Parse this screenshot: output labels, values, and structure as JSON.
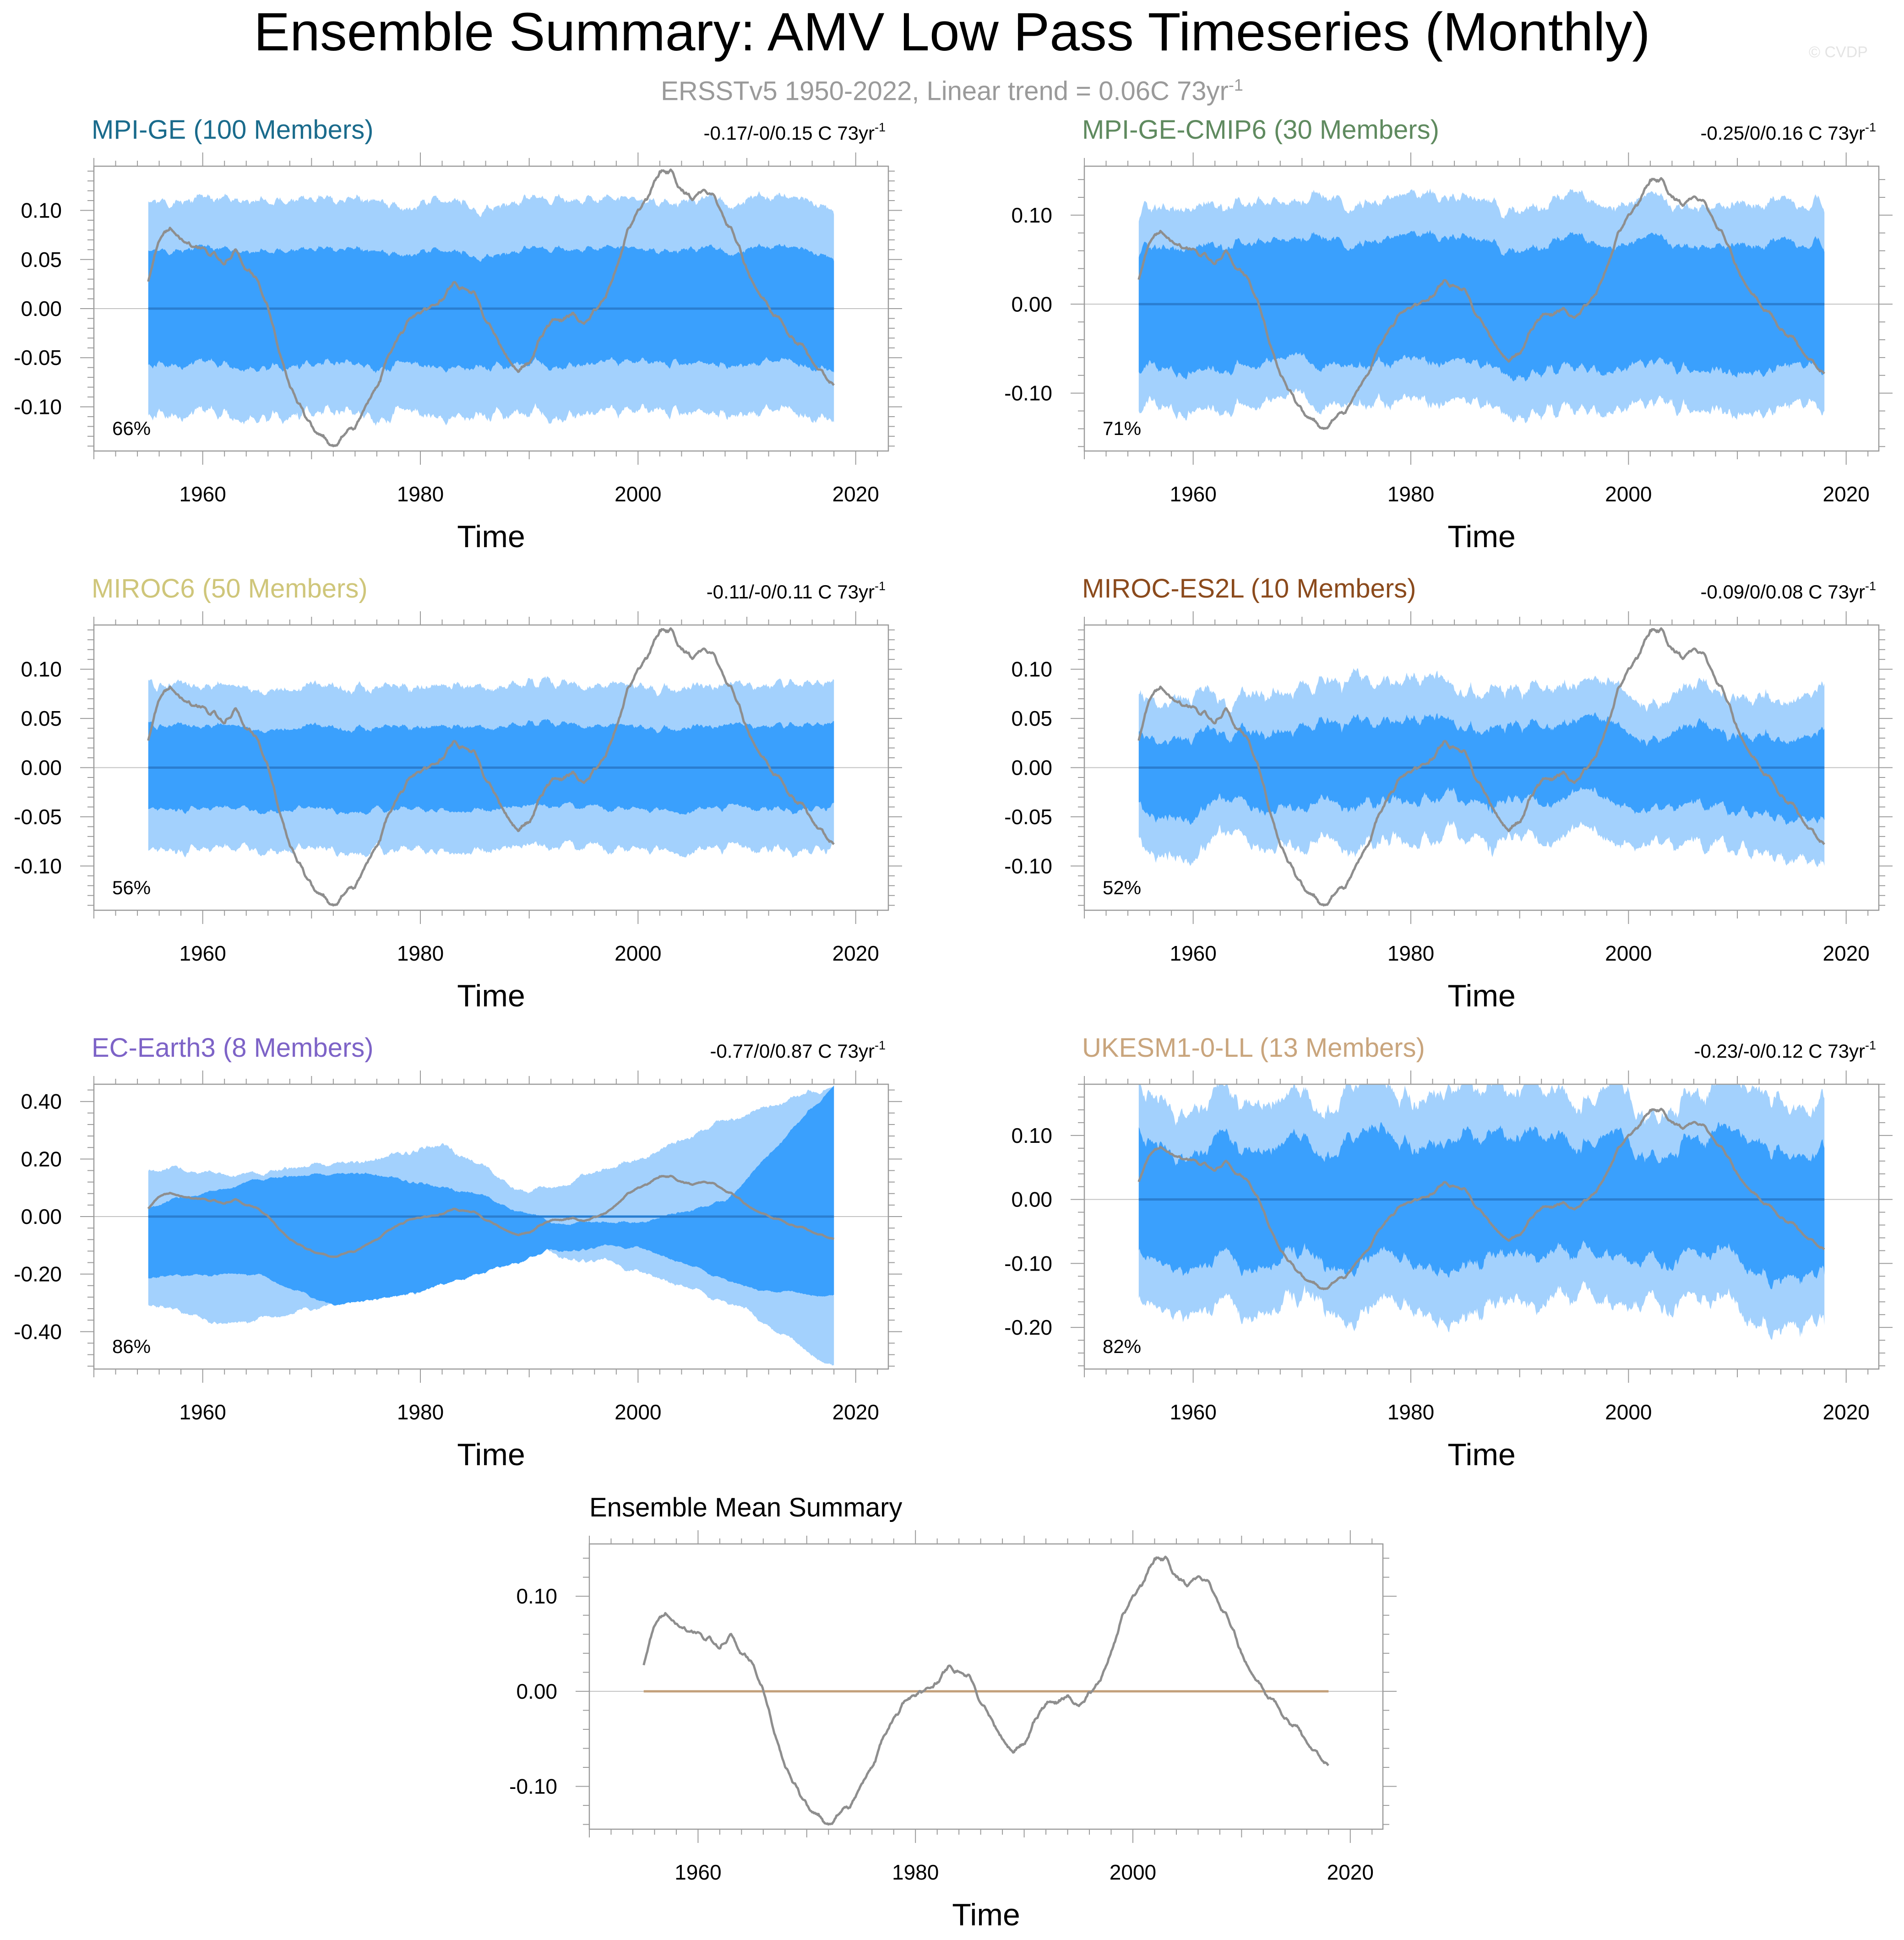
{
  "title": "Ensemble Summary: AMV Low Pass Timeseries (Monthly)",
  "subtitle_main": "ERSSTv5 1950-2022, Linear trend = 0.06C 73yr",
  "subtitle_exp": "-1",
  "copyright": "© CVDP",
  "colors": {
    "spread_outer": "#a3d1fd",
    "spread_inner": "#3aa0fd",
    "ensemble_line": "#2a7ed1",
    "obs_line": "#8e8e8e",
    "zero_line": "#c2c2c2",
    "mean_line": "#c3a07b",
    "axis": "#9b9b9b"
  },
  "chart_data": [
    {
      "type": "area",
      "name": "MPI-GE",
      "title": "MPI-GE (100 Members)",
      "title_color": "#1a6b8c",
      "range_label": "-0.17/-0/0.15 C 73yr",
      "range_exp": "-1",
      "percent": "66%",
      "xlabel": "Time",
      "xlim": [
        1950,
        2023
      ],
      "ylim": [
        -0.145,
        0.145
      ],
      "xticks": [
        "1960",
        "1980",
        "2000",
        "2020"
      ],
      "yticks": [
        "0.10",
        "0.05",
        "0.00",
        "-0.05",
        "-0.10"
      ],
      "ytick_values": [
        0.1,
        0.05,
        0.0,
        -0.05,
        -0.1
      ],
      "inner_amp": 0.058,
      "outer_amp": 0.108,
      "amp_var": 0.12,
      "seed": 1
    },
    {
      "type": "area",
      "name": "MPI-GE-CMIP6",
      "title": "MPI-GE-CMIP6 (30 Members)",
      "title_color": "#5f8a5f",
      "range_label": "-0.25/0/0.16 C 73yr",
      "range_exp": "-1",
      "percent": "71%",
      "xlabel": "Time",
      "xlim": [
        1950,
        2023
      ],
      "ylim": [
        -0.165,
        0.155
      ],
      "xticks": [
        "1960",
        "1980",
        "2000",
        "2020"
      ],
      "yticks": [
        "0.10",
        "0.00",
        "-0.10"
      ],
      "ytick_values": [
        0.1,
        0.0,
        -0.1
      ],
      "inner_amp": 0.07,
      "outer_amp": 0.115,
      "amp_var": 0.22,
      "seed": 2
    },
    {
      "type": "area",
      "name": "MIROC6",
      "title": "MIROC6 (50 Members)",
      "title_color": "#cfc67a",
      "range_label": "-0.11/-0/0.11 C 73yr",
      "range_exp": "-1",
      "percent": "56%",
      "xlabel": "Time",
      "xlim": [
        1950,
        2023
      ],
      "ylim": [
        -0.145,
        0.145
      ],
      "xticks": [
        "1960",
        "1980",
        "2000",
        "2020"
      ],
      "yticks": [
        "0.10",
        "0.05",
        "0.00",
        "-0.05",
        "-0.10"
      ],
      "ytick_values": [
        0.1,
        0.05,
        0.0,
        -0.05,
        -0.1
      ],
      "inner_amp": 0.042,
      "outer_amp": 0.083,
      "amp_var": 0.12,
      "seed": 3
    },
    {
      "type": "area",
      "name": "MIROC-ES2L",
      "title": "MIROC-ES2L (10 Members)",
      "title_color": "#8b4a1c",
      "range_label": "-0.09/0/0.08 C 73yr",
      "range_exp": "-1",
      "percent": "52%",
      "xlabel": "Time",
      "xlim": [
        1950,
        2023
      ],
      "ylim": [
        -0.145,
        0.145
      ],
      "xticks": [
        "1960",
        "1980",
        "2000",
        "2020"
      ],
      "yticks": [
        "0.10",
        "0.05",
        "0.00",
        "-0.05",
        "-0.10"
      ],
      "ytick_values": [
        0.1,
        0.05,
        0.0,
        -0.05,
        -0.1
      ],
      "inner_amp": 0.04,
      "outer_amp": 0.08,
      "amp_var": 0.55,
      "seed": 4
    },
    {
      "type": "area",
      "name": "EC-Earth3",
      "title": "EC-Earth3 (8 Members)",
      "title_color": "#7d63c7",
      "range_label": "-0.77/0/0.87 C 73yr",
      "range_exp": "-1",
      "percent": "86%",
      "xlabel": "Time",
      "xlim": [
        1950,
        2023
      ],
      "ylim": [
        -0.53,
        0.46
      ],
      "xticks": [
        "1960",
        "1980",
        "2000",
        "2020"
      ],
      "yticks": [
        "0.40",
        "0.20",
        "0.00",
        "-0.20",
        "-0.40"
      ],
      "ytick_values": [
        0.4,
        0.2,
        0.0,
        -0.2,
        -0.4
      ],
      "mode": "trend",
      "inner_upper": [
        [
          1955,
          0.03
        ],
        [
          1965,
          0.13
        ],
        [
          1975,
          0.15
        ],
        [
          1985,
          0.08
        ],
        [
          1992,
          -0.02
        ],
        [
          2000,
          -0.02
        ],
        [
          2008,
          0.05
        ],
        [
          2018,
          0.46
        ]
      ],
      "inner_lower": [
        [
          1955,
          -0.21
        ],
        [
          1965,
          -0.2
        ],
        [
          1972,
          -0.31
        ],
        [
          1980,
          -0.26
        ],
        [
          1992,
          -0.12
        ],
        [
          2000,
          -0.1
        ],
        [
          2010,
          -0.25
        ],
        [
          2018,
          -0.28
        ]
      ],
      "outer_upper": [
        [
          1955,
          0.16
        ],
        [
          1965,
          0.15
        ],
        [
          1975,
          0.19
        ],
        [
          1982,
          0.25
        ],
        [
          1990,
          0.08
        ],
        [
          2000,
          0.2
        ],
        [
          2008,
          0.33
        ],
        [
          2018,
          0.46
        ]
      ],
      "outer_lower": [
        [
          1955,
          -0.3
        ],
        [
          1962,
          -0.38
        ],
        [
          1970,
          -0.32
        ],
        [
          1980,
          -0.26
        ],
        [
          1990,
          -0.12
        ],
        [
          2000,
          -0.18
        ],
        [
          2010,
          -0.33
        ],
        [
          2018,
          -0.53
        ]
      ],
      "seed": 5
    },
    {
      "type": "area",
      "name": "UKESM1-0-LL",
      "title": "UKESM1-0-LL (13 Members)",
      "title_color": "#c9a57d",
      "range_label": "-0.23/-0/0.12 C 73yr",
      "range_exp": "-1",
      "percent": "82%",
      "xlabel": "Time",
      "xlim": [
        1950,
        2023
      ],
      "ylim": [
        -0.265,
        0.18
      ],
      "xticks": [
        "1960",
        "1980",
        "2000",
        "2020"
      ],
      "yticks": [
        "0.10",
        "0.00",
        "-0.10",
        "-0.20"
      ],
      "ytick_values": [
        0.1,
        0.0,
        -0.1,
        -0.2
      ],
      "inner_amp": 0.095,
      "outer_amp": 0.17,
      "amp_var": 0.5,
      "seed": 6
    },
    {
      "type": "line",
      "name": "Ensemble Mean",
      "title": "Ensemble Mean Summary",
      "title_color": "#000000",
      "xlabel": "Time",
      "xlim": [
        1950,
        2023
      ],
      "ylim": [
        -0.145,
        0.155
      ],
      "xticks": [
        "1960",
        "1980",
        "2000",
        "2020"
      ],
      "yticks": [
        "0.10",
        "0.00",
        "-0.10"
      ],
      "ytick_values": [
        0.1,
        0.0,
        -0.1
      ],
      "mean_value": 0.0
    }
  ],
  "observed_series": {
    "name": "ERSSTv5",
    "x": [
      1955,
      1956,
      1957,
      1958,
      1959,
      1960,
      1961,
      1962,
      1963,
      1964,
      1965,
      1966,
      1967,
      1968,
      1969,
      1970,
      1971,
      1972,
      1973,
      1974,
      1975,
      1976,
      1977,
      1978,
      1979,
      1980,
      1981,
      1982,
      1983,
      1984,
      1985,
      1986,
      1987,
      1988,
      1989,
      1990,
      1991,
      1992,
      1993,
      1994,
      1995,
      1996,
      1997,
      1998,
      1999,
      2000,
      2001,
      2002,
      2003,
      2004,
      2005,
      2006,
      2007,
      2008,
      2009,
      2010,
      2011,
      2012,
      2013,
      2014,
      2015,
      2016,
      2017,
      2018
    ],
    "y": [
      0.03,
      0.07,
      0.08,
      0.07,
      0.065,
      0.06,
      0.055,
      0.045,
      0.06,
      0.04,
      0.03,
      0.0,
      -0.04,
      -0.08,
      -0.1,
      -0.12,
      -0.13,
      -0.14,
      -0.13,
      -0.12,
      -0.1,
      -0.08,
      -0.05,
      -0.03,
      -0.01,
      -0.005,
      0.0,
      0.01,
      0.025,
      0.02,
      0.015,
      -0.01,
      -0.03,
      -0.05,
      -0.065,
      -0.055,
      -0.03,
      -0.015,
      -0.01,
      -0.005,
      -0.015,
      0.0,
      0.01,
      0.04,
      0.08,
      0.1,
      0.115,
      0.14,
      0.14,
      0.12,
      0.11,
      0.12,
      0.115,
      0.09,
      0.07,
      0.04,
      0.02,
      0.0,
      -0.01,
      -0.03,
      -0.035,
      -0.055,
      -0.065,
      -0.08
    ]
  }
}
